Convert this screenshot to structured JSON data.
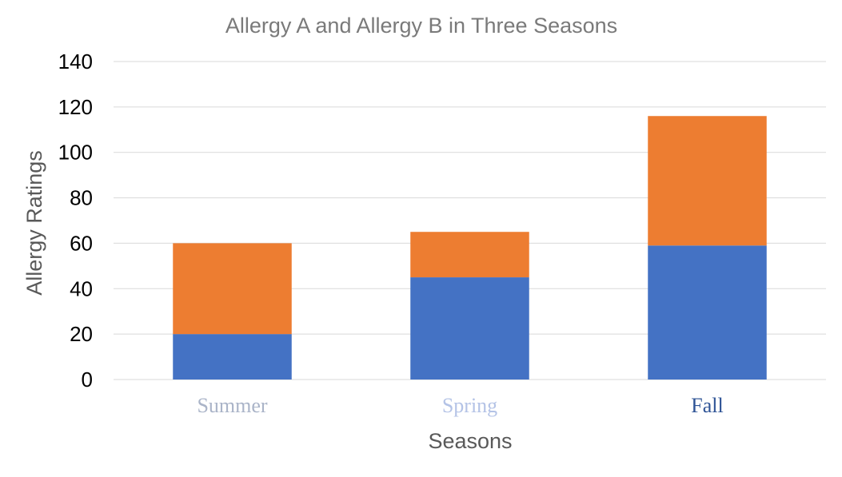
{
  "chart_data": {
    "type": "bar",
    "stacked": true,
    "title": "Allergy A and Allergy B in Three Seasons",
    "xlabel": "Seasons",
    "ylabel": "Allergy Ratings",
    "categories": [
      "Summer",
      "Spring",
      "Fall"
    ],
    "category_label_colors": [
      "#aab4c8",
      "#b4c3e6",
      "#2f5496"
    ],
    "ylim": [
      0,
      140
    ],
    "yticks": [
      "0",
      "20",
      "40",
      "60",
      "80",
      "100",
      "120",
      "140"
    ],
    "grid": true,
    "legend": "none",
    "series": [
      {
        "values": [
          20,
          45,
          59
        ],
        "color": "#4472c4"
      },
      {
        "values": [
          40,
          20,
          57
        ],
        "color": "#ed7d31"
      }
    ]
  }
}
